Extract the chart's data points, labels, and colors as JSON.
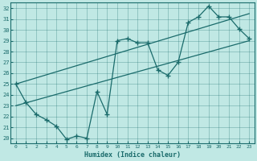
{
  "xlabel": "Humidex (Indice chaleur)",
  "ylabel": "",
  "bg_color": "#c0e8e4",
  "line_color": "#1a6b6b",
  "xlim": [
    -0.5,
    23.5
  ],
  "ylim": [
    19.5,
    32.5
  ],
  "xticks": [
    0,
    1,
    2,
    3,
    4,
    5,
    6,
    7,
    8,
    9,
    10,
    11,
    12,
    13,
    14,
    15,
    16,
    17,
    18,
    19,
    20,
    21,
    22,
    23
  ],
  "yticks": [
    20,
    21,
    22,
    23,
    24,
    25,
    26,
    27,
    28,
    29,
    30,
    31,
    32
  ],
  "line1_x": [
    0,
    1,
    2,
    3,
    4,
    5,
    6,
    7,
    8,
    9,
    10,
    11,
    12,
    13,
    14,
    15,
    16,
    17,
    18,
    19,
    20,
    21,
    22,
    23
  ],
  "line1_y": [
    25.0,
    23.3,
    22.2,
    21.7,
    21.1,
    19.9,
    20.2,
    20.0,
    24.3,
    22.2,
    29.0,
    29.2,
    28.8,
    28.8,
    26.3,
    25.8,
    27.0,
    30.7,
    31.2,
    32.2,
    31.2,
    31.2,
    30.1,
    29.2
  ],
  "line2_x": [
    0,
    23
  ],
  "line2_y": [
    23.0,
    29.0
  ],
  "line3_x": [
    0,
    23
  ],
  "line3_y": [
    25.0,
    31.5
  ]
}
